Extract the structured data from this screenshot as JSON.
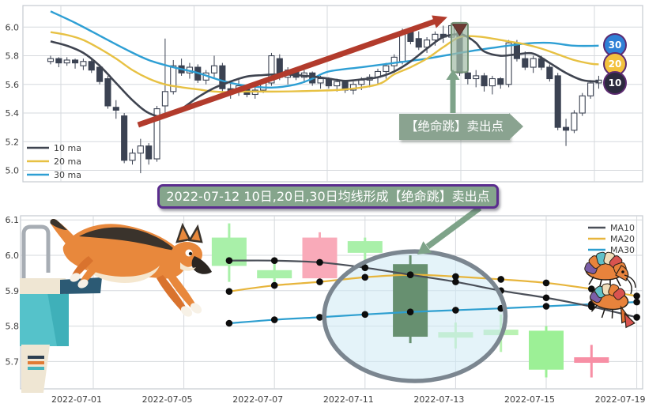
{
  "colors": {
    "bear_candle": "#3b4252",
    "grid": "#d6d9dd",
    "frame": "#c6cad0",
    "axis_text": "#3d3d3d",
    "red_arrow": "#b23b2c",
    "sage_green": "#8aa390",
    "ellipse_stroke": "#7b8690",
    "ellipse_fill": "#cdeaf4"
  },
  "chart_data": [
    {
      "type": "candlestick",
      "title": "",
      "ylim": [
        4.92,
        6.15
      ],
      "yticks": [
        5.0,
        5.2,
        5.4,
        5.6,
        5.8,
        6.0
      ],
      "grid": true,
      "legend_position": "lower-left",
      "legend": [
        {
          "label": "10 ma",
          "color": "#3f4450"
        },
        {
          "label": "20 ma",
          "color": "#e7c143"
        },
        {
          "label": "30 ma",
          "color": "#2e9fd4"
        }
      ],
      "bull_style": {
        "fill": "#ffffff",
        "stroke": "#3b4252"
      },
      "bear_style": {
        "fill": "#3b4252",
        "stroke": "#3b4252"
      },
      "candles": [
        [
          5.76,
          5.8,
          5.74,
          5.78
        ],
        [
          5.78,
          5.79,
          5.72,
          5.75
        ],
        [
          5.75,
          5.79,
          5.73,
          5.77
        ],
        [
          5.77,
          5.78,
          5.71,
          5.75
        ],
        [
          5.73,
          5.78,
          5.7,
          5.76
        ],
        [
          5.76,
          5.78,
          5.68,
          5.7
        ],
        [
          5.72,
          5.74,
          5.6,
          5.62
        ],
        [
          5.64,
          5.66,
          5.43,
          5.45
        ],
        [
          5.44,
          5.49,
          5.36,
          5.42
        ],
        [
          5.38,
          5.4,
          5.05,
          5.07
        ],
        [
          5.07,
          5.15,
          5.04,
          5.12
        ],
        [
          5.12,
          5.22,
          4.98,
          5.17
        ],
        [
          5.17,
          5.19,
          5.04,
          5.08
        ],
        [
          5.08,
          5.45,
          5.06,
          5.43
        ],
        [
          5.45,
          5.92,
          5.4,
          5.55
        ],
        [
          5.55,
          5.77,
          5.53,
          5.73
        ],
        [
          5.73,
          5.78,
          5.66,
          5.68
        ],
        [
          5.68,
          5.75,
          5.64,
          5.72
        ],
        [
          5.72,
          5.74,
          5.61,
          5.63
        ],
        [
          5.63,
          5.7,
          5.6,
          5.68
        ],
        [
          5.68,
          5.8,
          5.65,
          5.73
        ],
        [
          5.73,
          5.75,
          5.55,
          5.57
        ],
        [
          5.57,
          5.61,
          5.5,
          5.55
        ],
        [
          5.55,
          5.63,
          5.52,
          5.59
        ],
        [
          5.59,
          5.6,
          5.51,
          5.53
        ],
        [
          5.53,
          5.58,
          5.5,
          5.56
        ],
        [
          5.56,
          5.63,
          5.54,
          5.61
        ],
        [
          5.61,
          5.82,
          5.59,
          5.8
        ],
        [
          5.78,
          5.81,
          5.63,
          5.65
        ],
        [
          5.65,
          5.72,
          5.6,
          5.7
        ],
        [
          5.7,
          5.72,
          5.63,
          5.65
        ],
        [
          5.65,
          5.7,
          5.61,
          5.68
        ],
        [
          5.68,
          5.69,
          5.59,
          5.61
        ],
        [
          5.61,
          5.66,
          5.57,
          5.64
        ],
        [
          5.64,
          5.65,
          5.57,
          5.59
        ],
        [
          5.59,
          5.64,
          5.55,
          5.62
        ],
        [
          5.62,
          5.63,
          5.54,
          5.56
        ],
        [
          5.56,
          5.62,
          5.53,
          5.6
        ],
        [
          5.6,
          5.65,
          5.56,
          5.63
        ],
        [
          5.63,
          5.67,
          5.58,
          5.65
        ],
        [
          5.65,
          5.71,
          5.6,
          5.69
        ],
        [
          5.69,
          5.75,
          5.64,
          5.73
        ],
        [
          5.73,
          5.81,
          5.68,
          5.79
        ],
        [
          5.76,
          5.99,
          5.74,
          5.97
        ],
        [
          5.97,
          5.99,
          5.88,
          5.9
        ],
        [
          5.92,
          5.97,
          5.84,
          5.86
        ],
        [
          5.86,
          5.93,
          5.82,
          5.91
        ],
        [
          5.91,
          5.97,
          5.87,
          5.95
        ],
        [
          5.95,
          6.01,
          5.89,
          5.93
        ],
        [
          5.93,
          6.03,
          5.91,
          6.01
        ],
        [
          5.98,
          6.01,
          5.66,
          5.68
        ],
        [
          5.68,
          5.73,
          5.6,
          5.64
        ],
        [
          5.64,
          5.7,
          5.58,
          5.66
        ],
        [
          5.66,
          5.68,
          5.55,
          5.59
        ],
        [
          5.59,
          5.66,
          5.53,
          5.64
        ],
        [
          5.64,
          5.65,
          5.57,
          5.6
        ],
        [
          5.6,
          5.91,
          5.58,
          5.89
        ],
        [
          5.89,
          5.91,
          5.76,
          5.78
        ],
        [
          5.78,
          5.83,
          5.7,
          5.72
        ],
        [
          5.72,
          5.8,
          5.68,
          5.78
        ],
        [
          5.78,
          5.8,
          5.7,
          5.72
        ],
        [
          5.72,
          5.74,
          5.62,
          5.64
        ],
        [
          5.66,
          5.68,
          5.28,
          5.3
        ],
        [
          5.3,
          5.36,
          5.17,
          5.28
        ],
        [
          5.28,
          5.42,
          5.26,
          5.4
        ],
        [
          5.4,
          5.54,
          5.38,
          5.52
        ],
        [
          5.52,
          5.63,
          5.5,
          5.61
        ],
        [
          5.61,
          5.66,
          5.57,
          5.63
        ]
      ],
      "ma10_points": [
        [
          0,
          5.9
        ],
        [
          2,
          5.87
        ],
        [
          4,
          5.82
        ],
        [
          6,
          5.73
        ],
        [
          8,
          5.61
        ],
        [
          10,
          5.49
        ],
        [
          12,
          5.4
        ],
        [
          14,
          5.375
        ],
        [
          16,
          5.43
        ],
        [
          18,
          5.51
        ],
        [
          20,
          5.575
        ],
        [
          22,
          5.62
        ],
        [
          24,
          5.655
        ],
        [
          26,
          5.665
        ],
        [
          28,
          5.67
        ],
        [
          30,
          5.665
        ],
        [
          32,
          5.655
        ],
        [
          34,
          5.64
        ],
        [
          36,
          5.625
        ],
        [
          38,
          5.635
        ],
        [
          40,
          5.65
        ],
        [
          42,
          5.69
        ],
        [
          44,
          5.76
        ],
        [
          46,
          5.85
        ],
        [
          48,
          5.93
        ],
        [
          50,
          5.95
        ],
        [
          51,
          5.93
        ],
        [
          52,
          5.89
        ],
        [
          53,
          5.83
        ],
        [
          55,
          5.8
        ],
        [
          57,
          5.81
        ],
        [
          59,
          5.815
        ],
        [
          61,
          5.75
        ],
        [
          63,
          5.68
        ],
        [
          65,
          5.63
        ],
        [
          67,
          5.62
        ]
      ],
      "ma20_points": [
        [
          0,
          5.965
        ],
        [
          2,
          5.945
        ],
        [
          4,
          5.91
        ],
        [
          6,
          5.85
        ],
        [
          8,
          5.78
        ],
        [
          10,
          5.7
        ],
        [
          12,
          5.64
        ],
        [
          14,
          5.6
        ],
        [
          16,
          5.58
        ],
        [
          18,
          5.565
        ],
        [
          20,
          5.55
        ],
        [
          22,
          5.545
        ],
        [
          24,
          5.55
        ],
        [
          28,
          5.55
        ],
        [
          32,
          5.555
        ],
        [
          36,
          5.565
        ],
        [
          40,
          5.6
        ],
        [
          42,
          5.67
        ],
        [
          44,
          5.72
        ],
        [
          46,
          5.78
        ],
        [
          48,
          5.86
        ],
        [
          50,
          5.93
        ],
        [
          52,
          5.935
        ],
        [
          54,
          5.92
        ],
        [
          56,
          5.9
        ],
        [
          58,
          5.88
        ],
        [
          60,
          5.85
        ],
        [
          62,
          5.81
        ],
        [
          64,
          5.77
        ],
        [
          66,
          5.745
        ],
        [
          67,
          5.74
        ]
      ],
      "ma30_points": [
        [
          0,
          6.11
        ],
        [
          3,
          6.03
        ],
        [
          6,
          5.94
        ],
        [
          9,
          5.85
        ],
        [
          12,
          5.77
        ],
        [
          15,
          5.72
        ],
        [
          18,
          5.68
        ],
        [
          21,
          5.625
        ],
        [
          24,
          5.59
        ],
        [
          27,
          5.578
        ],
        [
          30,
          5.6
        ],
        [
          32,
          5.64
        ],
        [
          34,
          5.69
        ],
        [
          38,
          5.72
        ],
        [
          42,
          5.75
        ],
        [
          46,
          5.78
        ],
        [
          50,
          5.82
        ],
        [
          54,
          5.855
        ],
        [
          58,
          5.885
        ],
        [
          61,
          5.89
        ],
        [
          64,
          5.87
        ],
        [
          67,
          5.87
        ]
      ],
      "trend_arrow": {
        "from": [
          10.7,
          5.317
        ],
        "to": [
          48.5,
          6.07
        ],
        "color": "#b23b2c"
      },
      "highlight": {
        "index": 50,
        "price_top": 6.03,
        "price_bottom": 5.685,
        "stroke": "#769478"
      },
      "sell_marker": {
        "index": 50,
        "price": 6.02,
        "color": "#6e3a33"
      },
      "annotation": {
        "text": "【绝命跳】卖出点",
        "fill": "#8aa390",
        "text_color": "#ffffff"
      },
      "badges": [
        {
          "label": "30",
          "fill": "#2f80d6"
        },
        {
          "label": "20",
          "fill": "#f3c13d"
        },
        {
          "label": "10",
          "fill": "#2c2a3e"
        }
      ]
    },
    {
      "type": "candlestick",
      "title": "2022-07-12 10日,20日,30日均线形成【绝命跳】卖出点",
      "ylim": [
        5.62,
        6.115
      ],
      "yticks": [
        5.7,
        5.8,
        5.9,
        6.0,
        6.1
      ],
      "grid": true,
      "dates": [
        "2022-07-01",
        "2022-07-04",
        "2022-07-05",
        "2022-07-06",
        "2022-07-07",
        "2022-07-08",
        "2022-07-11",
        "2022-07-12",
        "2022-07-13",
        "2022-07-14",
        "2022-07-15",
        "2022-07-18",
        "2022-07-19"
      ],
      "xtick_labels": [
        "2022-07-01",
        "2022-07-05",
        "2022-07-07",
        "2022-07-11",
        "2022-07-13",
        "2022-07-15",
        "2022-07-19"
      ],
      "xtick_day_indices": [
        0,
        2,
        4,
        6,
        8,
        10,
        12
      ],
      "legend_position": "upper-right",
      "legend": [
        {
          "label": "MA10",
          "color": "#4a4f58"
        },
        {
          "label": "MA20",
          "color": "#e7b53c"
        },
        {
          "label": "MA30",
          "color": "#2e9fd0"
        }
      ],
      "candles": [
        {
          "day": 3,
          "date": "2022-07-06",
          "open": 5.97,
          "high": 6.09,
          "low": 5.925,
          "close": 6.05,
          "color": "#a9f0a9"
        },
        {
          "day": 4,
          "date": "2022-07-07",
          "open": 5.935,
          "high": 5.985,
          "low": 5.918,
          "close": 5.958,
          "color": "#a9f0a9"
        },
        {
          "day": 5,
          "date": "2022-07-08",
          "open": 6.05,
          "high": 6.065,
          "low": 5.93,
          "close": 5.935,
          "color": "#f9aab9"
        },
        {
          "day": 6,
          "date": "2022-07-11",
          "open": 6.007,
          "high": 6.05,
          "low": 5.955,
          "close": 6.04,
          "color": "#a9f0a9"
        },
        {
          "day": 7,
          "date": "2022-07-12",
          "open": 5.975,
          "high": 6.0,
          "low": 5.752,
          "close": 5.77,
          "color": "#679070",
          "highlighted": true
        },
        {
          "day": 8,
          "date": "2022-07-13",
          "open": 5.783,
          "high": 5.81,
          "low": 5.737,
          "close": 5.772,
          "color": "#b9f2b2"
        },
        {
          "day": 9,
          "date": "2022-07-14",
          "open": 5.78,
          "high": 5.833,
          "low": 5.727,
          "close": 5.79,
          "color": "#b9f2b2"
        },
        {
          "day": 10,
          "date": "2022-07-15",
          "open": 5.677,
          "high": 5.8,
          "low": 5.655,
          "close": 5.787,
          "color": "#9cf096"
        },
        {
          "day": 11,
          "date": "2022-07-18",
          "open": 5.712,
          "high": 5.747,
          "low": 5.655,
          "close": 5.7,
          "color": "#f78fa5"
        }
      ],
      "ma_series": [
        {
          "name": "MA10",
          "color": "#4a4f58",
          "days": [
            3,
            4,
            5,
            6,
            7,
            8,
            9,
            10,
            11,
            12
          ],
          "values": [
            5.985,
            5.985,
            5.98,
            5.965,
            5.945,
            5.925,
            5.9,
            5.88,
            5.855,
            5.825
          ]
        },
        {
          "name": "MA20",
          "color": "#e7b53c",
          "days": [
            3,
            4,
            5,
            6,
            7,
            8,
            9,
            10,
            11,
            12
          ],
          "values": [
            5.898,
            5.915,
            5.925,
            5.938,
            5.945,
            5.94,
            5.932,
            5.922,
            5.905,
            5.885
          ]
        },
        {
          "name": "MA30",
          "color": "#2e9fd0",
          "days": [
            3,
            4,
            5,
            6,
            7,
            8,
            9,
            10,
            11,
            12
          ],
          "values": [
            5.808,
            5.818,
            5.825,
            5.833,
            5.84,
            5.845,
            5.85,
            5.856,
            5.862,
            5.868
          ]
        }
      ],
      "ellipse": {
        "center_day": 7.1,
        "center_price": 5.828,
        "rx_days": 2.0,
        "ry_price": 0.183
      }
    }
  ]
}
